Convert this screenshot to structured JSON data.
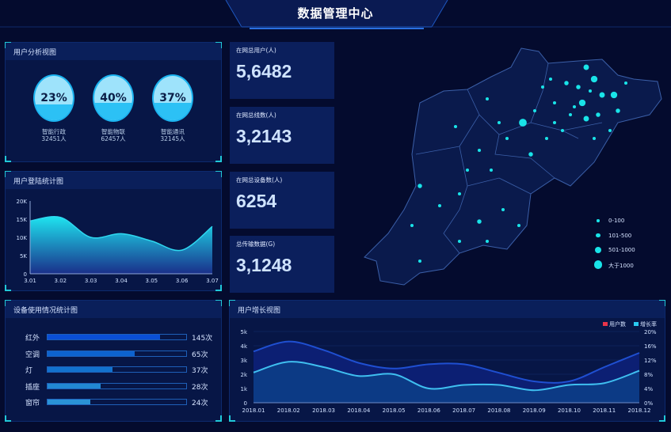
{
  "header": {
    "title": "数据管理中心"
  },
  "user_analysis": {
    "title": "用户分析视图",
    "items": [
      {
        "percent": "23%",
        "fill": 0.23,
        "name": "智能行政",
        "count": "32451人"
      },
      {
        "percent": "40%",
        "fill": 0.4,
        "name": "智能物联",
        "count": "62457人"
      },
      {
        "percent": "37%",
        "fill": 0.37,
        "name": "智能通讯",
        "count": "32145人"
      }
    ]
  },
  "stats": [
    {
      "label": "在网总用户(人)",
      "value": "5,6482"
    },
    {
      "label": "在网总线数(人)",
      "value": "3,2143"
    },
    {
      "label": "在网总设备数(人)",
      "value": "6254"
    },
    {
      "label": "总传输数据(G)",
      "value": "3,1248"
    }
  ],
  "map": {
    "legend": [
      {
        "label": "0-100",
        "size": 1
      },
      {
        "label": "101-500",
        "size": 2
      },
      {
        "label": "501-1000",
        "size": 3
      },
      {
        "label": "大于1000",
        "size": 4
      }
    ],
    "dot_color": "#19e3e8"
  },
  "device_usage": {
    "title": "设备使用情况统计图",
    "items": [
      {
        "name": "红外",
        "value": "145次",
        "fill": 0.81,
        "color": "#0a4fd6"
      },
      {
        "name": "空调",
        "value": "65次",
        "fill": 0.63,
        "color": "#0d63cf"
      },
      {
        "name": "灯",
        "value": "37次",
        "fill": 0.47,
        "color": "#1272cf"
      },
      {
        "name": "插座",
        "value": "28次",
        "fill": 0.38,
        "color": "#2288d3"
      },
      {
        "name": "窗帘",
        "value": "24次",
        "fill": 0.31,
        "color": "#2a93d6"
      }
    ]
  },
  "chart_data": [
    {
      "type": "area",
      "title": "用户登陆统计图",
      "categories": [
        "3.01",
        "3.02",
        "3.03",
        "3.04",
        "3.05",
        "3.06",
        "3.07"
      ],
      "values": [
        14500,
        15500,
        10000,
        11000,
        9000,
        6500,
        13000
      ],
      "ylim": [
        0,
        20000
      ],
      "yticks": [
        "0",
        "5K",
        "10K",
        "15K",
        "20K"
      ],
      "grid": false
    },
    {
      "type": "area",
      "title": "用户增长视图",
      "categories": [
        "2018.01",
        "2018.02",
        "2018.03",
        "2018.04",
        "2018.05",
        "2018.06",
        "2018.07",
        "2018.08",
        "2018.09",
        "2018.10",
        "2018.11",
        "2018.12"
      ],
      "series": [
        {
          "name": "用户数",
          "axis": "left",
          "legend_color": "#e8344a",
          "color": "#1f4fd1",
          "values": [
            3600,
            4300,
            3700,
            2800,
            2400,
            2700,
            2700,
            2100,
            1500,
            1500,
            2500,
            3500
          ]
        },
        {
          "name": "增长率",
          "axis": "right",
          "legend_color": "#29c9f0",
          "color": "#3fbff0",
          "values": [
            8.5,
            11.5,
            10,
            7.5,
            8,
            4,
            5,
            5,
            3.5,
            5,
            5.5,
            9
          ]
        }
      ],
      "ylim_left": [
        0,
        5000
      ],
      "yticks_left": [
        "0",
        "1k",
        "2k",
        "3k",
        "4k",
        "5k"
      ],
      "ylim_right": [
        0,
        20
      ],
      "yticks_right": [
        "0%",
        "4%",
        "8%",
        "12%",
        "16%",
        "20%"
      ],
      "legend": "top-right",
      "grid": true
    }
  ]
}
